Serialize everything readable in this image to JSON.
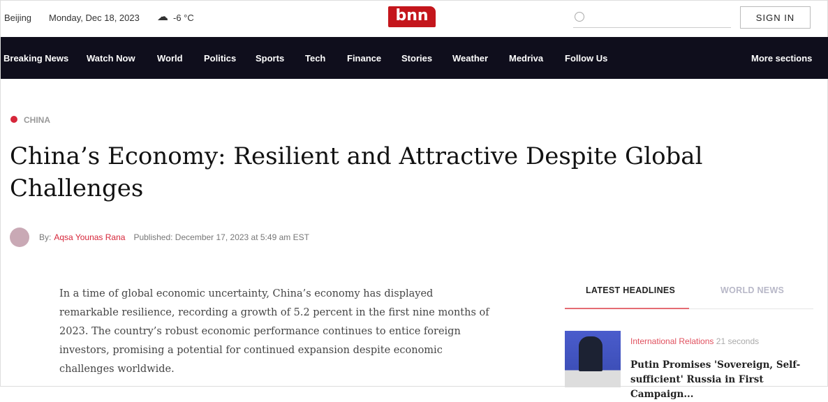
{
  "topbar": {
    "city": "Beijing",
    "date": "Monday, Dec 18, 2023",
    "weather_icon": "cloud-icon",
    "temperature": "-6 °C",
    "logo": "bnn",
    "signin": "SIGN IN"
  },
  "nav": [
    "Breaking News",
    "Watch Now",
    "World",
    "Politics",
    "Sports",
    "Tech",
    "Finance",
    "Stories",
    "Weather",
    "Medriva",
    "Follow Us"
  ],
  "nav_more": "More sections",
  "article": {
    "category": "CHINA",
    "title": "China’s Economy: Resilient and Attractive Despite Global Challenges",
    "by": "By:",
    "author": "Aqsa Younas Rana",
    "published": "Published: December 17, 2023 at 5:49 am EST",
    "body": "In a time of global economic uncertainty, China’s economy has displayed remarkable resilience, recording a growth of 5.2 percent in the first nine months of 2023. The country’s robust economic performance continues to entice foreign investors, promising a potential for continued expansion despite economic challenges worldwide."
  },
  "sidebar": {
    "tabs": [
      "LATEST HEADLINES",
      "WORLD NEWS"
    ],
    "items": [
      {
        "category": "International Relations",
        "time": "21 seconds",
        "headline": "Putin Promises 'Sovereign, Self-sufficient' Russia in First Campaign..."
      }
    ]
  },
  "colors": {
    "accent": "#d6263a",
    "nav_bg": "#0f0e1c"
  }
}
